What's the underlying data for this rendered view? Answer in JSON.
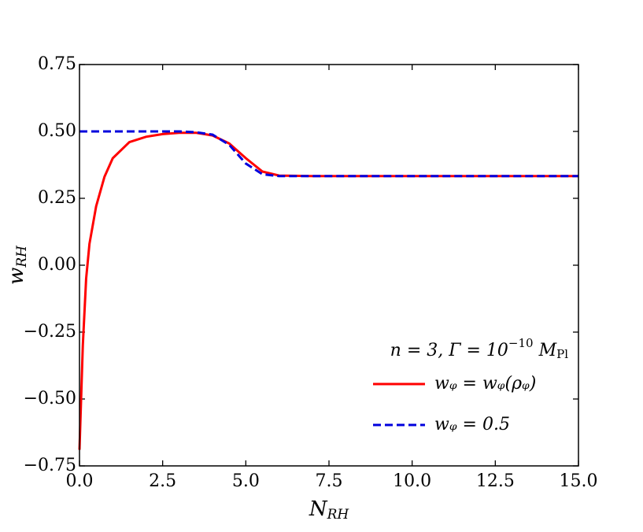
{
  "chart_data": {
    "type": "line",
    "x": [
      0,
      0.1,
      0.2,
      0.3,
      0.5,
      0.75,
      1,
      1.5,
      2,
      2.5,
      3,
      3.5,
      4,
      4.5,
      5,
      5.5,
      6,
      7,
      10,
      15
    ],
    "series": [
      {
        "name": "wᵩ = wᵩ(ρᵩ)",
        "color": "#ff0000",
        "dash": false,
        "values": [
          -0.69,
          -0.3,
          -0.05,
          0.08,
          0.22,
          0.33,
          0.4,
          0.46,
          0.48,
          0.49,
          0.495,
          0.495,
          0.485,
          0.455,
          0.4,
          0.35,
          0.335,
          0.333,
          0.333,
          0.333
        ]
      },
      {
        "name": "wᵩ = 0.5",
        "color": "#0000dd",
        "dash": true,
        "values": [
          0.5,
          0.5,
          0.5,
          0.5,
          0.5,
          0.5,
          0.5,
          0.5,
          0.5,
          0.5,
          0.5,
          0.497,
          0.488,
          0.45,
          0.38,
          0.34,
          0.333,
          0.333,
          0.333,
          0.333
        ]
      }
    ],
    "xlabel": {
      "base": "N",
      "sub": "RH"
    },
    "ylabel": {
      "base": "w",
      "sub": "RH"
    },
    "legend_title": {
      "text": "n = 3, Γ = 10",
      "sup": "−10",
      "text2": " M",
      "sub": "Pl"
    },
    "xlim": [
      0,
      15
    ],
    "ylim": [
      -0.75,
      0.75
    ],
    "xticks": [
      {
        "value": 0,
        "label": "0.0"
      },
      {
        "value": 2.5,
        "label": "2.5"
      },
      {
        "value": 5,
        "label": "5.0"
      },
      {
        "value": 7.5,
        "label": "7.5"
      },
      {
        "value": 10,
        "label": "10.0"
      },
      {
        "value": 12.5,
        "label": "12.5"
      },
      {
        "value": 15,
        "label": "15.0"
      }
    ],
    "yticks": [
      {
        "value": -0.75,
        "label": "−0.75"
      },
      {
        "value": -0.5,
        "label": "−0.50"
      },
      {
        "value": -0.25,
        "label": "−0.25"
      },
      {
        "value": 0,
        "label": "0.00"
      },
      {
        "value": 0.25,
        "label": "0.25"
      },
      {
        "value": 0.5,
        "label": "0.50"
      },
      {
        "value": 0.75,
        "label": "0.75"
      }
    ],
    "legend": "lower right"
  }
}
